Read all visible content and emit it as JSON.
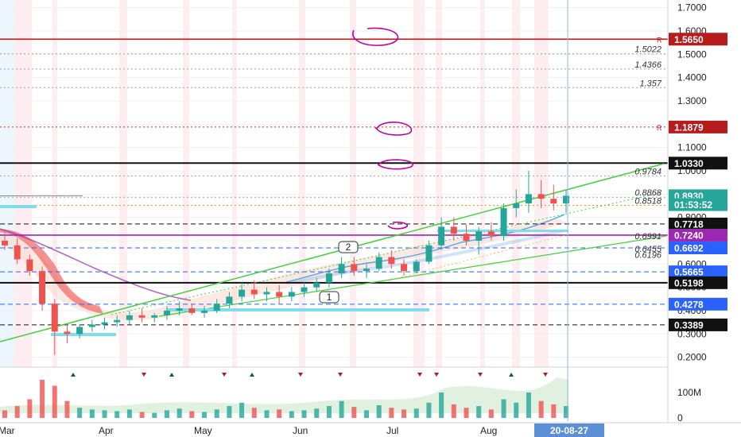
{
  "chart_data": {
    "type": "candlestick",
    "y_axis": {
      "ticks": [
        "1.7000",
        "1.6000",
        "1.5000",
        "1.4000",
        "1.3000",
        "1.2000",
        "1.1000",
        "1.0000",
        "0.9000",
        "0.8000",
        "0.7000",
        "0.6000",
        "0.5000",
        "0.4000",
        "0.3000",
        "0.2000"
      ],
      "range": [
        0.18,
        1.78
      ]
    },
    "x_axis": {
      "ticks": [
        "Mar",
        "Apr",
        "May",
        "Jun",
        "Jul",
        "Aug"
      ],
      "cursor_label": "20-08-27"
    },
    "volume_axis": {
      "ticks": [
        "100M",
        "0"
      ]
    },
    "price_badges": [
      {
        "value": "1.5650",
        "price": 1.565,
        "color": "#b71c1c",
        "marker": "R"
      },
      {
        "value": "1.1879",
        "price": 1.1879,
        "color": "#b71c1c",
        "marker": "R"
      },
      {
        "value": "1.0330",
        "price": 1.033,
        "color": "#111111"
      },
      {
        "value": "0.8930",
        "price": 0.893,
        "color": "#26a69a"
      },
      {
        "value": "01:53:52",
        "price": 0.855,
        "color": "#26a69a"
      },
      {
        "value": "0.7718",
        "price": 0.7718,
        "color": "#111111"
      },
      {
        "value": "0.7240",
        "price": 0.724,
        "color": "#9c27b0"
      },
      {
        "value": "0.6692",
        "price": 0.6692,
        "color": "#2962ff"
      },
      {
        "value": "0.5665",
        "price": 0.5665,
        "color": "#2962ff"
      },
      {
        "value": "0.5198",
        "price": 0.5198,
        "color": "#111111"
      },
      {
        "value": "0.4278",
        "price": 0.4278,
        "color": "#2962ff"
      },
      {
        "value": "0.3389",
        "price": 0.3389,
        "color": "#111111"
      }
    ],
    "fib_labels": [
      {
        "value": "1.5022",
        "price": 1.5022
      },
      {
        "value": "1.4366",
        "price": 1.4366
      },
      {
        "value": "1.357",
        "price": 1.357
      },
      {
        "value": "0.9784",
        "price": 0.9784
      },
      {
        "value": "0.8868",
        "price": 0.8868
      },
      {
        "value": "0.8518",
        "price": 0.8518
      },
      {
        "value": "0.6991",
        "price": 0.6991
      },
      {
        "value": "0.6455",
        "price": 0.6455
      },
      {
        "value": "0.6196",
        "price": 0.6196
      }
    ],
    "horizontal_lines": [
      {
        "price": 1.565,
        "color": "#b71c1c",
        "style": "solid"
      },
      {
        "price": 1.1879,
        "color": "#c62828",
        "style": "dotted"
      },
      {
        "price": 1.033,
        "color": "#111111",
        "style": "solid"
      },
      {
        "price": 0.7718,
        "color": "#111111",
        "style": "dashed"
      },
      {
        "price": 0.724,
        "color": "#9c27b0",
        "style": "solid"
      },
      {
        "price": 0.6692,
        "color": "#2962ff",
        "style": "dashed"
      },
      {
        "price": 0.5665,
        "color": "#2962ff",
        "style": "dashed"
      },
      {
        "price": 0.5198,
        "color": "#111111",
        "style": "solid"
      },
      {
        "price": 0.4278,
        "color": "#2962ff",
        "style": "dashed"
      },
      {
        "price": 0.3389,
        "color": "#111111",
        "style": "dashed"
      },
      {
        "price": 1.5022,
        "color": "#9e9e9e",
        "style": "dotted"
      },
      {
        "price": 1.4366,
        "color": "#9e9e9e",
        "style": "dotted"
      },
      {
        "price": 1.357,
        "color": "#9e9e9e",
        "style": "dotted"
      },
      {
        "price": 0.9784,
        "color": "#9e9e9e",
        "style": "dotted"
      },
      {
        "price": 0.8868,
        "color": "#9e9e9e",
        "style": "dotted"
      },
      {
        "price": 0.8518,
        "color": "#ff9800",
        "style": "dotted"
      }
    ],
    "wave_labels": [
      "1",
      "2"
    ],
    "candles": [
      {
        "i": 0,
        "o": 0.7,
        "h": 0.74,
        "l": 0.66,
        "c": 0.68
      },
      {
        "i": 1,
        "o": 0.68,
        "h": 0.71,
        "l": 0.6,
        "c": 0.62
      },
      {
        "i": 2,
        "o": 0.62,
        "h": 0.64,
        "l": 0.55,
        "c": 0.57
      },
      {
        "i": 3,
        "o": 0.57,
        "h": 0.59,
        "l": 0.4,
        "c": 0.43
      },
      {
        "i": 4,
        "o": 0.43,
        "h": 0.45,
        "l": 0.21,
        "c": 0.31
      },
      {
        "i": 5,
        "o": 0.31,
        "h": 0.34,
        "l": 0.26,
        "c": 0.3
      },
      {
        "i": 6,
        "o": 0.3,
        "h": 0.34,
        "l": 0.28,
        "c": 0.33
      },
      {
        "i": 7,
        "o": 0.33,
        "h": 0.36,
        "l": 0.31,
        "c": 0.34
      },
      {
        "i": 8,
        "o": 0.34,
        "h": 0.37,
        "l": 0.32,
        "c": 0.35
      },
      {
        "i": 9,
        "o": 0.35,
        "h": 0.38,
        "l": 0.33,
        "c": 0.36
      },
      {
        "i": 10,
        "o": 0.36,
        "h": 0.4,
        "l": 0.34,
        "c": 0.38
      },
      {
        "i": 11,
        "o": 0.38,
        "h": 0.41,
        "l": 0.35,
        "c": 0.37
      },
      {
        "i": 12,
        "o": 0.37,
        "h": 0.39,
        "l": 0.35,
        "c": 0.38
      },
      {
        "i": 13,
        "o": 0.38,
        "h": 0.42,
        "l": 0.36,
        "c": 0.4
      },
      {
        "i": 14,
        "o": 0.4,
        "h": 0.44,
        "l": 0.38,
        "c": 0.41
      },
      {
        "i": 15,
        "o": 0.41,
        "h": 0.43,
        "l": 0.38,
        "c": 0.39
      },
      {
        "i": 16,
        "o": 0.39,
        "h": 0.42,
        "l": 0.37,
        "c": 0.4
      },
      {
        "i": 17,
        "o": 0.4,
        "h": 0.45,
        "l": 0.39,
        "c": 0.43
      },
      {
        "i": 18,
        "o": 0.43,
        "h": 0.48,
        "l": 0.41,
        "c": 0.46
      },
      {
        "i": 19,
        "o": 0.46,
        "h": 0.52,
        "l": 0.44,
        "c": 0.49
      },
      {
        "i": 20,
        "o": 0.49,
        "h": 0.53,
        "l": 0.45,
        "c": 0.47
      },
      {
        "i": 21,
        "o": 0.47,
        "h": 0.5,
        "l": 0.44,
        "c": 0.48
      },
      {
        "i": 22,
        "o": 0.48,
        "h": 0.51,
        "l": 0.43,
        "c": 0.46
      },
      {
        "i": 23,
        "o": 0.46,
        "h": 0.5,
        "l": 0.44,
        "c": 0.48
      },
      {
        "i": 24,
        "o": 0.48,
        "h": 0.52,
        "l": 0.46,
        "c": 0.5
      },
      {
        "i": 25,
        "o": 0.5,
        "h": 0.54,
        "l": 0.48,
        "c": 0.52
      },
      {
        "i": 26,
        "o": 0.52,
        "h": 0.58,
        "l": 0.5,
        "c": 0.56
      },
      {
        "i": 27,
        "o": 0.56,
        "h": 0.63,
        "l": 0.54,
        "c": 0.6
      },
      {
        "i": 28,
        "o": 0.6,
        "h": 0.63,
        "l": 0.55,
        "c": 0.57
      },
      {
        "i": 29,
        "o": 0.57,
        "h": 0.6,
        "l": 0.54,
        "c": 0.58
      },
      {
        "i": 30,
        "o": 0.58,
        "h": 0.65,
        "l": 0.57,
        "c": 0.63
      },
      {
        "i": 31,
        "o": 0.63,
        "h": 0.66,
        "l": 0.58,
        "c": 0.6
      },
      {
        "i": 32,
        "o": 0.6,
        "h": 0.62,
        "l": 0.55,
        "c": 0.57
      },
      {
        "i": 33,
        "o": 0.57,
        "h": 0.62,
        "l": 0.56,
        "c": 0.61
      },
      {
        "i": 34,
        "o": 0.61,
        "h": 0.7,
        "l": 0.6,
        "c": 0.68
      },
      {
        "i": 35,
        "o": 0.68,
        "h": 0.8,
        "l": 0.66,
        "c": 0.76
      },
      {
        "i": 36,
        "o": 0.76,
        "h": 0.8,
        "l": 0.7,
        "c": 0.73
      },
      {
        "i": 37,
        "o": 0.73,
        "h": 0.77,
        "l": 0.68,
        "c": 0.7
      },
      {
        "i": 38,
        "o": 0.7,
        "h": 0.76,
        "l": 0.64,
        "c": 0.74
      },
      {
        "i": 39,
        "o": 0.74,
        "h": 0.78,
        "l": 0.7,
        "c": 0.72
      },
      {
        "i": 40,
        "o": 0.72,
        "h": 0.86,
        "l": 0.7,
        "c": 0.84
      },
      {
        "i": 41,
        "o": 0.84,
        "h": 0.92,
        "l": 0.8,
        "c": 0.86
      },
      {
        "i": 42,
        "o": 0.86,
        "h": 1.0,
        "l": 0.82,
        "c": 0.9
      },
      {
        "i": 43,
        "o": 0.9,
        "h": 0.96,
        "l": 0.84,
        "c": 0.88
      },
      {
        "i": 44,
        "o": 0.88,
        "h": 0.94,
        "l": 0.83,
        "c": 0.86
      },
      {
        "i": 45,
        "o": 0.86,
        "h": 0.92,
        "l": 0.82,
        "c": 0.893
      }
    ],
    "volume": [
      9,
      14,
      22,
      45,
      38,
      20,
      12,
      10,
      9,
      8,
      10,
      7,
      6,
      9,
      11,
      8,
      7,
      10,
      14,
      18,
      12,
      9,
      10,
      8,
      9,
      11,
      14,
      20,
      13,
      9,
      15,
      12,
      10,
      11,
      18,
      30,
      16,
      12,
      14,
      10,
      22,
      18,
      30,
      20,
      16,
      14
    ]
  }
}
